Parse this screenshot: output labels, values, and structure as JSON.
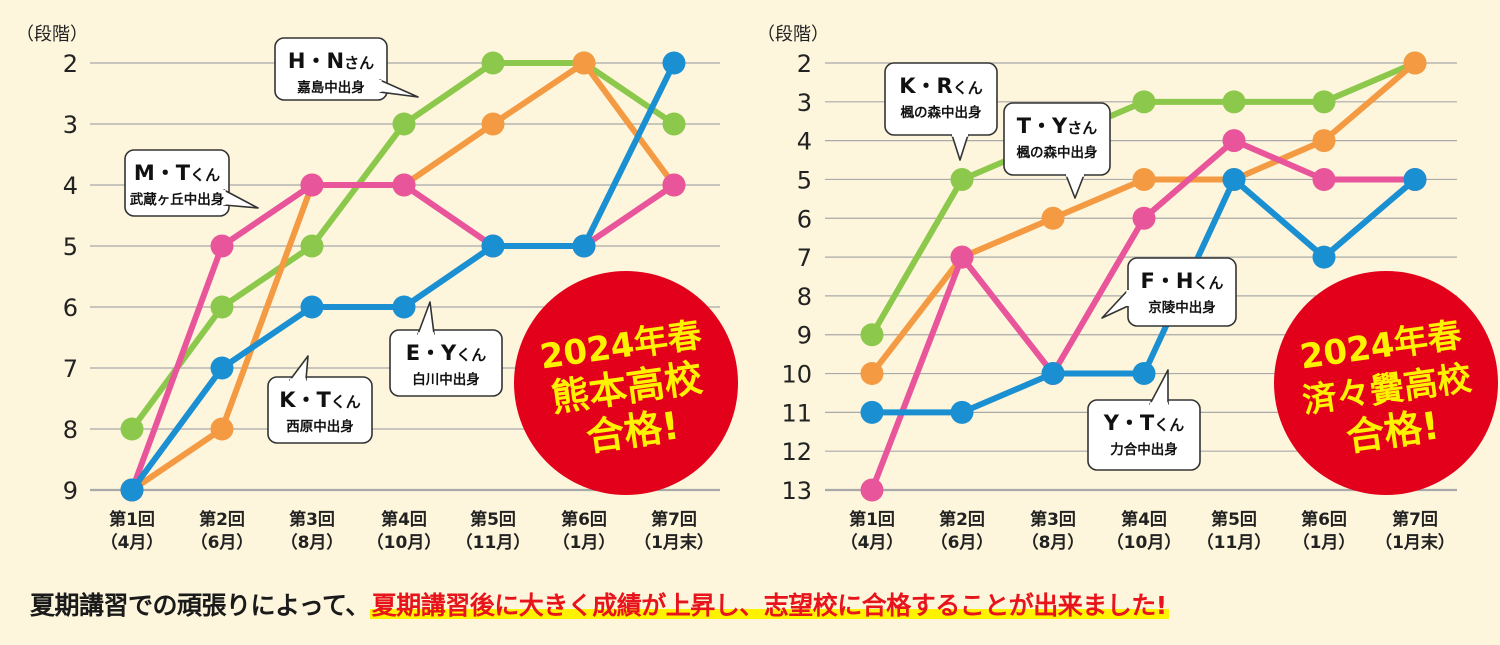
{
  "colors": {
    "green": "#8cc84b",
    "orange": "#f39a43",
    "pink": "#e8559b",
    "blue": "#1a8fd2",
    "badge": "#e3001b",
    "badge_text": "#fff200",
    "grid": "#a9a9a9"
  },
  "chart_data": [
    {
      "type": "line",
      "y_unit_label": "（段階）",
      "categories": [
        "第1回",
        "第2回",
        "第3回",
        "第4回",
        "第5回",
        "第6回",
        "第7回"
      ],
      "category_sublabels": [
        "（4月）",
        "（6月）",
        "（8月）",
        "（10月）",
        "（11月）",
        "（1月）",
        "（1月末）"
      ],
      "y_ticks": [
        "2",
        "3",
        "4",
        "5",
        "6",
        "7",
        "8",
        "9"
      ],
      "ylim": [
        2,
        9
      ],
      "y_inverted": true,
      "series": [
        {
          "color": "green",
          "values": [
            8,
            6,
            5,
            3,
            2,
            2,
            3
          ]
        },
        {
          "color": "orange",
          "values": [
            9,
            8,
            4,
            4,
            3,
            2,
            4
          ]
        },
        {
          "color": "pink",
          "values": [
            9,
            5,
            4,
            4,
            5,
            5,
            4
          ]
        },
        {
          "color": "blue",
          "values": [
            9,
            7,
            6,
            6,
            5,
            5,
            2
          ]
        }
      ],
      "callouts": [
        {
          "name": "H・N",
          "suffix": "さん",
          "school": "嘉島中出身"
        },
        {
          "name": "M・T",
          "suffix": "くん",
          "school": "武蔵ヶ丘中出身"
        },
        {
          "name": "E・Y",
          "suffix": "くん",
          "school": "白川中出身"
        },
        {
          "name": "K・T",
          "suffix": "くん",
          "school": "西原中出身"
        }
      ],
      "badge_lines": [
        "2024年春",
        "熊本高校",
        "合格!"
      ]
    },
    {
      "type": "line",
      "y_unit_label": "（段階）",
      "categories": [
        "第1回",
        "第2回",
        "第3回",
        "第4回",
        "第5回",
        "第6回",
        "第7回"
      ],
      "category_sublabels": [
        "（4月）",
        "（6月）",
        "（8月）",
        "（10月）",
        "（11月）",
        "（1月）",
        "（1月末）"
      ],
      "y_ticks": [
        "2",
        "3",
        "4",
        "5",
        "6",
        "7",
        "8",
        "9",
        "10",
        "11",
        "12",
        "13"
      ],
      "ylim": [
        2,
        13
      ],
      "y_inverted": true,
      "series": [
        {
          "color": "green",
          "values": [
            9,
            5,
            4,
            3,
            3,
            3,
            2
          ]
        },
        {
          "color": "orange",
          "values": [
            10,
            7,
            6,
            5,
            5,
            4,
            2
          ]
        },
        {
          "color": "pink",
          "values": [
            13,
            7,
            10,
            6,
            4,
            5,
            5
          ]
        },
        {
          "color": "blue",
          "values": [
            11,
            11,
            10,
            10,
            5,
            7,
            5
          ]
        }
      ],
      "callouts": [
        {
          "name": "K・R",
          "suffix": "くん",
          "school": "楓の森中出身"
        },
        {
          "name": "T・Y",
          "suffix": "さん",
          "school": "楓の森中出身"
        },
        {
          "name": "F・H",
          "suffix": "くん",
          "school": "京陵中出身"
        },
        {
          "name": "Y・T",
          "suffix": "くん",
          "school": "力合中出身"
        }
      ],
      "badge_lines": [
        "2024年春",
        "済々黌高校",
        "合格!"
      ]
    }
  ],
  "bottom_text": {
    "plain": "夏期講習での頑張りによって、",
    "highlight": "夏期講習後に大きく成績が上昇し、志望校に合格することが出来ました!"
  }
}
